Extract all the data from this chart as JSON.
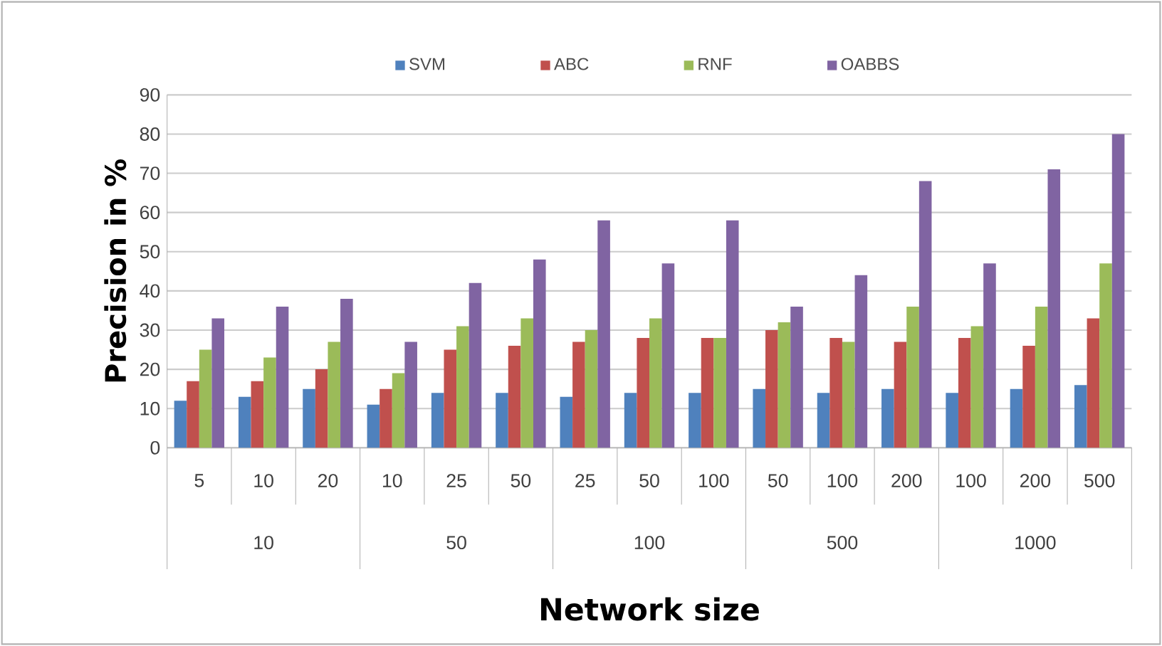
{
  "chart_data": {
    "type": "bar",
    "xlabel": "Network size",
    "ylabel": "Precision in %",
    "categories": [
      "5",
      "10",
      "20",
      "10",
      "25",
      "50",
      "25",
      "50",
      "100",
      "50",
      "100",
      "200",
      "100",
      "200",
      "500"
    ],
    "annotations": [
      "10",
      "50",
      "100",
      "500",
      "1000"
    ],
    "series": [
      {
        "name": "SVM",
        "color": "#4f81bd",
        "values": [
          12,
          13,
          15,
          11,
          14,
          14,
          13,
          14,
          14,
          15,
          14,
          15,
          14,
          15,
          16
        ]
      },
      {
        "name": "ABC",
        "color": "#c0504d",
        "values": [
          17,
          17,
          20,
          15,
          25,
          26,
          27,
          28,
          28,
          30,
          28,
          27,
          28,
          26,
          33
        ]
      },
      {
        "name": "RNF",
        "color": "#9bbb59",
        "values": [
          25,
          23,
          27,
          19,
          31,
          33,
          30,
          33,
          28,
          32,
          27,
          36,
          31,
          36,
          47
        ]
      },
      {
        "name": "OABBS",
        "color": "#8064a2",
        "values": [
          33,
          36,
          38,
          27,
          42,
          48,
          58,
          47,
          58,
          36,
          44,
          68,
          47,
          71,
          80
        ]
      }
    ],
    "ylim": [
      0,
      90
    ],
    "yticks": [
      0,
      10,
      20,
      30,
      40,
      50,
      60,
      70,
      80,
      90
    ],
    "grid": "y",
    "legend": "top"
  }
}
